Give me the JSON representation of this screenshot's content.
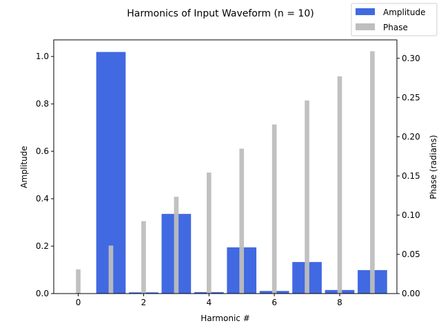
{
  "chart_data": {
    "type": "bar",
    "title": "Harmonics of Input Waveform (n = 10)",
    "xlabel": "Harmonic #",
    "ylabel": "Amplitude",
    "y2label": "Phase (radians)",
    "legend_position": "top-right",
    "grid": false,
    "xlim": [
      -0.75,
      9.75
    ],
    "ylim": [
      0,
      1.07
    ],
    "y2lim": [
      0,
      0.3235
    ],
    "x": [
      0,
      1,
      2,
      3,
      4,
      5,
      6,
      7,
      8,
      9
    ],
    "xticks": [
      "0",
      "2",
      "4",
      "6",
      "8"
    ],
    "yticks": [
      "0.0",
      "0.2",
      "0.4",
      "0.6",
      "0.8",
      "1.0"
    ],
    "y2ticks": [
      "0.00",
      "0.05",
      "0.10",
      "0.15",
      "0.20",
      "0.25",
      "0.30"
    ],
    "series": [
      {
        "name": "Amplitude",
        "axis": "left",
        "color": "#4169e1",
        "values": [
          0.0,
          1.019,
          0.005,
          0.336,
          0.006,
          0.195,
          0.011,
          0.133,
          0.015,
          0.099
        ]
      },
      {
        "name": "Phase",
        "axis": "right",
        "color": "#bebebe",
        "values": [
          0.0308,
          0.0612,
          0.0923,
          0.1235,
          0.1543,
          0.1848,
          0.2156,
          0.2462,
          0.277,
          0.309
        ]
      }
    ]
  }
}
